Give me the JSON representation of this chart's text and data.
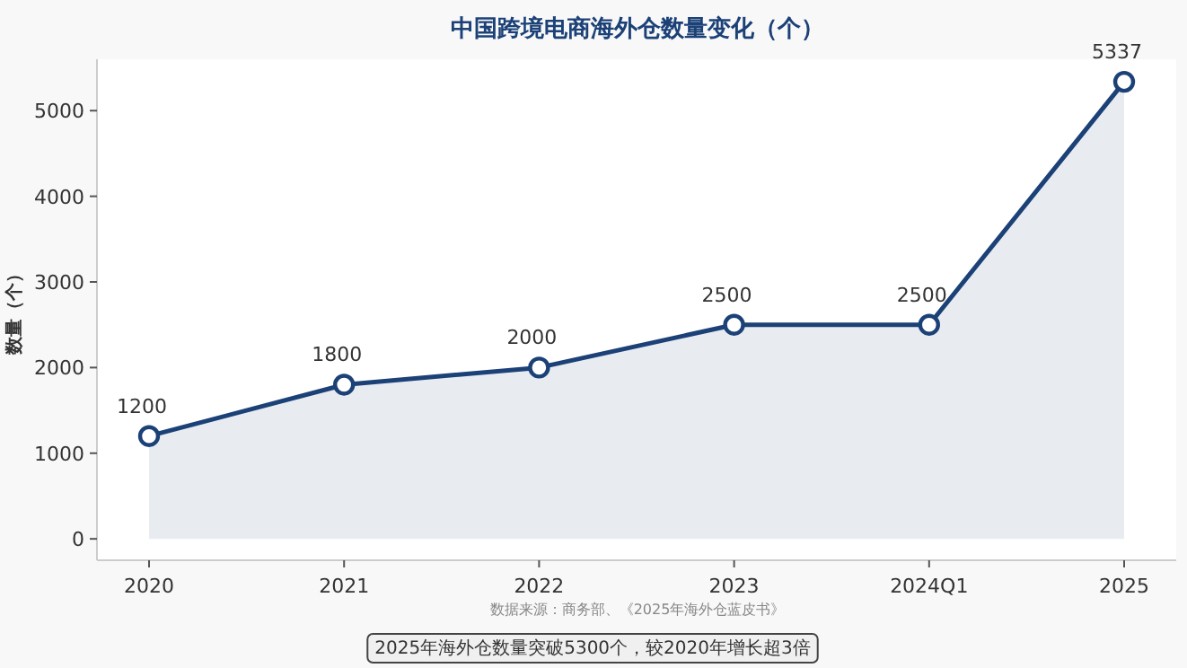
{
  "chart_data": {
    "type": "area",
    "title": "中国跨境电商海外仓数量变化（个）",
    "ylabel": "数量（个）",
    "categories": [
      "2020",
      "2021",
      "2022",
      "2023",
      "2024Q1",
      "2025"
    ],
    "series": [
      {
        "color": "#1b4177",
        "values": [
          1200,
          1800,
          2000,
          2500,
          2500,
          5337
        ]
      }
    ],
    "ylim": [
      -250,
      5600
    ],
    "yticks": [
      0,
      1000,
      2000,
      3000,
      4000,
      5000
    ],
    "marker": "circle",
    "data_labels": true,
    "annotations": [
      "数据来源：商务部、《2025年海外仓蓝皮书》",
      "2025年海外仓数量突破5300个，较2020年增长超3倍"
    ]
  }
}
